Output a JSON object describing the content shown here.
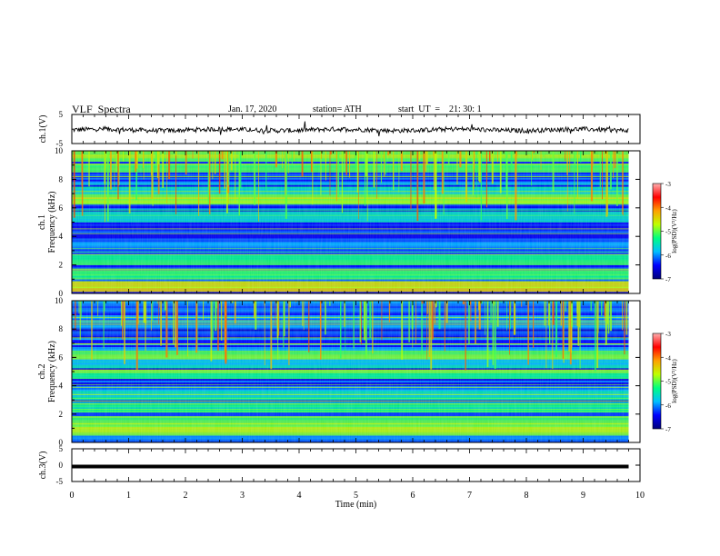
{
  "header": {
    "title": "VLF  Spectra",
    "date": "Jan. 17, 2020",
    "station": "station= ATH",
    "start_ut": "start  UT  =    21: 30: 1"
  },
  "colors": {
    "colormap": [
      "#00007a",
      "#0000ff",
      "#00c0ff",
      "#00ff80",
      "#c0ff00",
      "#ffa000",
      "#ff0000",
      "#ffb0b0"
    ],
    "trace": "#000000"
  },
  "chart_data": [
    {
      "type": "line",
      "name": "ch1-waveform",
      "ylabel": "ch.1(V)",
      "yticks": [
        "5",
        "-5"
      ],
      "ylim": [
        -5,
        5
      ],
      "xlim": [
        0,
        10
      ],
      "mean_value": -0.3,
      "x_end": 9.8,
      "notes_visible": "noisy trace near 0 V across 0–9.8 min"
    },
    {
      "type": "heatmap",
      "name": "ch1-spectrogram",
      "ylabel": "ch.1\nFrequency  (kHz)",
      "yticks": [
        "0",
        "2",
        "4",
        "6",
        "8",
        "10"
      ],
      "ylim": [
        0,
        10
      ],
      "xlim": [
        0,
        10
      ],
      "x_end": 9.8,
      "bands_khz": [
        {
          "f": 0.5,
          "level": -4.5
        },
        {
          "f": 1.3,
          "level": -5.2
        },
        {
          "f": 2.4,
          "level": -5.3
        },
        {
          "f": 3.5,
          "level": -6.0
        },
        {
          "f": 4.4,
          "level": -6.9
        },
        {
          "f": 5.4,
          "level": -5.5
        },
        {
          "f": 6.6,
          "level": -4.8
        },
        {
          "f": 7.2,
          "level": -5.6
        },
        {
          "f": 8.8,
          "level": -5.0
        },
        {
          "f": 9.6,
          "level": -4.9
        }
      ],
      "colorbar": {
        "label": "log(PSD)(V²/Hz)",
        "ticks": [
          "-3",
          "-4",
          "-5",
          "-6",
          "-7"
        ],
        "range": [
          -7,
          -3
        ]
      }
    },
    {
      "type": "heatmap",
      "name": "ch2-spectrogram",
      "ylabel": "ch.2\nFrequency  (kHz)",
      "yticks": [
        "0",
        "2",
        "4",
        "6",
        "8",
        "10"
      ],
      "ylim": [
        0,
        10
      ],
      "xlim": [
        0,
        10
      ],
      "x_end": 9.8,
      "bands_khz": [
        {
          "f": 0.8,
          "level": -4.8
        },
        {
          "f": 1.5,
          "level": -5.0
        },
        {
          "f": 2.5,
          "level": -5.4
        },
        {
          "f": 3.4,
          "level": -5.6
        },
        {
          "f": 4.8,
          "level": -5.3
        },
        {
          "f": 5.6,
          "level": -5.7
        },
        {
          "f": 6.2,
          "level": -5.0
        },
        {
          "f": 6.9,
          "level": -6.8
        },
        {
          "f": 8.5,
          "level": -6.0
        },
        {
          "f": 9.5,
          "level": -6.2
        }
      ],
      "colorbar": {
        "label": "log(PSD)(V²/Hz)",
        "ticks": [
          "-3",
          "-4",
          "-5",
          "-6",
          "-7"
        ],
        "range": [
          -7,
          -3
        ]
      }
    },
    {
      "type": "line",
      "name": "ch3-waveform",
      "ylabel": "ch.3(V)",
      "yticks": [
        "5",
        "0",
        "-5"
      ],
      "ylim": [
        -5,
        5
      ],
      "xlim": [
        0,
        10
      ],
      "mean_value": -0.4,
      "x_end": 9.8
    }
  ],
  "xaxis": {
    "label": "Time  (min)",
    "ticks": [
      "0",
      "1",
      "2",
      "3",
      "4",
      "5",
      "6",
      "7",
      "8",
      "9",
      "10"
    ]
  }
}
